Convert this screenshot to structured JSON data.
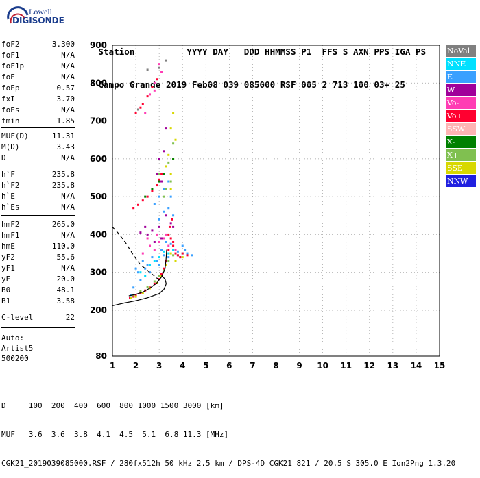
{
  "logo": {
    "line1": "Lowell",
    "line2": "DIGISONDE"
  },
  "header": {
    "labels": [
      "Station",
      "YYYY",
      "DAY",
      "DDD",
      "HHMMSS",
      "P1",
      "FFS",
      "S",
      "AXN",
      "PPS",
      "IGA",
      "PS"
    ],
    "values": [
      "Campo Grande",
      "2019",
      "Feb08",
      "039",
      "085000",
      "RSF",
      "005",
      "2",
      "713",
      "100",
      "03+",
      "25"
    ]
  },
  "params": [
    {
      "k": "foF2",
      "v": "3.300"
    },
    {
      "k": "foF1",
      "v": "N/A"
    },
    {
      "k": "foF1p",
      "v": "N/A"
    },
    {
      "k": "foE",
      "v": "N/A"
    },
    {
      "k": "foEp",
      "v": "0.57"
    },
    {
      "k": "fxI",
      "v": "3.70"
    },
    {
      "k": "foEs",
      "v": "N/A"
    },
    {
      "k": "fmin",
      "v": "1.85"
    },
    {
      "k": "MUF(D)",
      "v": "11.31"
    },
    {
      "k": "M(D)",
      "v": "3.43"
    },
    {
      "k": "D",
      "v": "N/A"
    },
    {
      "k": "h`F",
      "v": "235.8"
    },
    {
      "k": "h`F2",
      "v": "235.8"
    },
    {
      "k": "h`E",
      "v": "N/A"
    },
    {
      "k": "h`Es",
      "v": "N/A"
    },
    {
      "k": "hmF2",
      "v": "265.0"
    },
    {
      "k": "hmF1",
      "v": "N/A"
    },
    {
      "k": "hmE",
      "v": "110.0"
    },
    {
      "k": "yF2",
      "v": "55.6"
    },
    {
      "k": "yF1",
      "v": "N/A"
    },
    {
      "k": "yE",
      "v": "20.0"
    },
    {
      "k": "B0",
      "v": "48.1"
    },
    {
      "k": "B1",
      "v": "3.58"
    },
    {
      "k": "C-level",
      "v": "22"
    }
  ],
  "auto": [
    "Auto:",
    "Artist5",
    "500200"
  ],
  "legend": [
    {
      "label": "NoVal",
      "color": "#808080"
    },
    {
      "label": "NNE",
      "color": "#00e0ff"
    },
    {
      "label": "E",
      "color": "#3aa0ff"
    },
    {
      "label": "W",
      "color": "#a0009a"
    },
    {
      "label": "Vo-",
      "color": "#ff3cb4"
    },
    {
      "label": "Vo+",
      "color": "#ff0030"
    },
    {
      "label": "SSW",
      "color": "#ffb4b4"
    },
    {
      "label": "X-",
      "color": "#008000"
    },
    {
      "label": "X+",
      "color": "#80c050"
    },
    {
      "label": "SSE",
      "color": "#d8d800"
    },
    {
      "label": "NNW",
      "color": "#2020e0"
    }
  ],
  "bottom": {
    "line1": "D     100  200  400  600  800 1000 1500 3000 [km]",
    "line2": "MUF   3.6  3.6  3.8  4.1  4.5  5.1  6.8 11.3 [MHz]",
    "line3": "CGK21_2019039085000.RSF / 280fx512h 50 kHz 2.5 km / DPS-4D CGK21 821 / 20.5 S 305.0 E Ion2Png 1.3.20"
  },
  "chart_data": {
    "type": "scatter",
    "x_ticks": [
      1,
      2,
      3,
      4,
      5,
      6,
      7,
      8,
      9,
      10,
      11,
      12,
      13,
      14,
      15
    ],
    "y_ticks": [
      80,
      200,
      300,
      400,
      500,
      600,
      700,
      800,
      900
    ],
    "xlim": [
      1,
      15
    ],
    "ylim": [
      80,
      900
    ],
    "grid": true,
    "xlabel": "",
    "ylabel": "",
    "clusters": [
      {
        "color": "#3aa0ff",
        "points": [
          [
            1.8,
            240
          ],
          [
            2.2,
            280
          ],
          [
            2.6,
            300
          ],
          [
            3.0,
            320
          ],
          [
            3.4,
            340
          ],
          [
            3.8,
            355
          ],
          [
            4.2,
            350
          ],
          [
            2.4,
            310
          ],
          [
            2.9,
            330
          ],
          [
            3.2,
            345
          ],
          [
            3.6,
            360
          ],
          [
            4.0,
            370
          ],
          [
            4.4,
            345
          ],
          [
            1.9,
            260
          ],
          [
            2.1,
            300
          ],
          [
            2.5,
            320
          ],
          [
            2.7,
            340
          ],
          [
            3.1,
            360
          ],
          [
            3.5,
            375
          ],
          [
            3.9,
            340
          ],
          [
            2.3,
            330
          ],
          [
            2.0,
            310
          ],
          [
            3.3,
            380
          ],
          [
            3.7,
            330
          ],
          [
            4.1,
            360
          ]
        ]
      },
      {
        "color": "#00e0ff",
        "points": [
          [
            2.2,
            300
          ],
          [
            2.6,
            320
          ],
          [
            3.0,
            340
          ],
          [
            3.4,
            350
          ],
          [
            3.8,
            345
          ],
          [
            2.8,
            330
          ],
          [
            3.2,
            355
          ],
          [
            3.6,
            360
          ],
          [
            2.4,
            290
          ],
          [
            4.0,
            350
          ]
        ]
      },
      {
        "color": "#ff0030",
        "points": [
          [
            1.75,
            233
          ],
          [
            1.9,
            236
          ],
          [
            2.0,
            240
          ],
          [
            2.2,
            245
          ],
          [
            2.4,
            252
          ],
          [
            2.6,
            260
          ],
          [
            2.8,
            270
          ],
          [
            3.0,
            282
          ],
          [
            3.1,
            295
          ],
          [
            3.2,
            310
          ],
          [
            3.3,
            330
          ],
          [
            3.4,
            360
          ],
          [
            3.5,
            390
          ],
          [
            3.6,
            370
          ],
          [
            3.7,
            350
          ],
          [
            3.8,
            345
          ],
          [
            3.9,
            340
          ],
          [
            4.0,
            350
          ],
          [
            4.2,
            345
          ],
          [
            3.45,
            420
          ],
          [
            3.55,
            440
          ],
          [
            3.4,
            400
          ],
          [
            3.6,
            380
          ]
        ]
      },
      {
        "color": "#ff3cb4",
        "points": [
          [
            2.3,
            350
          ],
          [
            2.6,
            370
          ],
          [
            3.0,
            380
          ],
          [
            3.4,
            370
          ],
          [
            3.7,
            360
          ],
          [
            2.8,
            360
          ],
          [
            3.2,
            390
          ],
          [
            2.5,
            390
          ],
          [
            2.9,
            400
          ],
          [
            3.3,
            400
          ]
        ]
      },
      {
        "color": "#a0009a",
        "points": [
          [
            2.2,
            405
          ],
          [
            2.5,
            400
          ],
          [
            2.8,
            380
          ],
          [
            3.1,
            390
          ],
          [
            3.3,
            450
          ],
          [
            3.5,
            430
          ],
          [
            3.0,
            420
          ],
          [
            2.9,
            560
          ],
          [
            3.1,
            540
          ],
          [
            3.2,
            620
          ],
          [
            3.3,
            680
          ],
          [
            3.0,
            600
          ],
          [
            2.7,
            410
          ],
          [
            3.6,
            420
          ],
          [
            2.4,
            420
          ]
        ]
      },
      {
        "color": "#d8d800",
        "points": [
          [
            1.8,
            232
          ],
          [
            2.0,
            236
          ],
          [
            2.3,
            245
          ],
          [
            2.6,
            258
          ],
          [
            2.9,
            272
          ],
          [
            3.1,
            290
          ],
          [
            3.3,
            320
          ],
          [
            3.5,
            350
          ],
          [
            3.7,
            330
          ],
          [
            4.0,
            340
          ],
          [
            3.4,
            610
          ],
          [
            3.5,
            680
          ],
          [
            3.6,
            720
          ],
          [
            3.3,
            580
          ],
          [
            3.5,
            560
          ],
          [
            3.6,
            600
          ],
          [
            3.7,
            650
          ],
          [
            3.5,
            520
          ]
        ]
      },
      {
        "color": "#80c050",
        "points": [
          [
            1.9,
            240
          ],
          [
            2.2,
            250
          ],
          [
            2.5,
            262
          ],
          [
            2.8,
            276
          ],
          [
            3.0,
            290
          ],
          [
            3.2,
            305
          ],
          [
            3.4,
            330
          ],
          [
            3.6,
            345
          ],
          [
            3.4,
            590
          ],
          [
            3.6,
            640
          ],
          [
            3.3,
            520
          ],
          [
            3.5,
            540
          ],
          [
            3.0,
            560
          ],
          [
            3.2,
            500
          ]
        ]
      },
      {
        "color": "#ff0030",
        "points": [
          [
            1.9,
            470
          ],
          [
            2.1,
            478
          ],
          [
            2.3,
            490
          ],
          [
            2.5,
            500
          ],
          [
            2.7,
            515
          ],
          [
            2.9,
            530
          ],
          [
            3.0,
            545
          ],
          [
            3.1,
            560
          ],
          [
            2.0,
            720
          ],
          [
            2.3,
            745
          ],
          [
            2.5,
            765
          ],
          [
            2.7,
            790
          ],
          [
            2.9,
            810
          ],
          [
            2.2,
            735
          ]
        ]
      },
      {
        "color": "#3aa0ff",
        "points": [
          [
            2.8,
            480
          ],
          [
            3.0,
            500
          ],
          [
            3.2,
            520
          ],
          [
            3.4,
            540
          ],
          [
            3.2,
            460
          ],
          [
            3.4,
            470
          ],
          [
            3.0,
            440
          ],
          [
            3.6,
            450
          ],
          [
            3.5,
            500
          ]
        ]
      },
      {
        "color": "#ff3cb4",
        "points": [
          [
            2.6,
            770
          ],
          [
            2.8,
            800
          ],
          [
            3.1,
            830
          ],
          [
            2.4,
            720
          ],
          [
            2.8,
            780
          ],
          [
            3.0,
            850
          ]
        ]
      },
      {
        "color": "#008000",
        "points": [
          [
            2.4,
            500
          ],
          [
            2.7,
            520
          ],
          [
            3.0,
            540
          ],
          [
            3.2,
            560
          ],
          [
            3.6,
            600
          ]
        ]
      },
      {
        "color": "#808080",
        "points": [
          [
            2.5,
            835
          ],
          [
            3.0,
            840
          ],
          [
            2.1,
            730
          ],
          [
            3.3,
            860
          ]
        ]
      }
    ],
    "curves": [
      {
        "style": "solid",
        "points": [
          [
            1.0,
            212
          ],
          [
            1.5,
            219
          ],
          [
            2.0,
            225
          ],
          [
            2.5,
            233
          ],
          [
            3.0,
            244
          ],
          [
            3.2,
            255
          ],
          [
            3.3,
            270
          ],
          [
            3.25,
            282
          ],
          [
            3.1,
            292
          ]
        ]
      },
      {
        "style": "solid",
        "points": [
          [
            1.7,
            238
          ],
          [
            2.0,
            242
          ],
          [
            2.3,
            248
          ],
          [
            2.6,
            258
          ],
          [
            2.9,
            272
          ],
          [
            3.1,
            288
          ],
          [
            3.25,
            310
          ],
          [
            3.3,
            340
          ],
          [
            3.32,
            360
          ]
        ]
      },
      {
        "style": "dashed",
        "points": [
          [
            1.0,
            420
          ],
          [
            1.3,
            400
          ],
          [
            1.6,
            375
          ],
          [
            1.9,
            345
          ],
          [
            2.2,
            320
          ],
          [
            2.5,
            305
          ],
          [
            2.8,
            290
          ],
          [
            3.0,
            280
          ]
        ]
      }
    ]
  }
}
